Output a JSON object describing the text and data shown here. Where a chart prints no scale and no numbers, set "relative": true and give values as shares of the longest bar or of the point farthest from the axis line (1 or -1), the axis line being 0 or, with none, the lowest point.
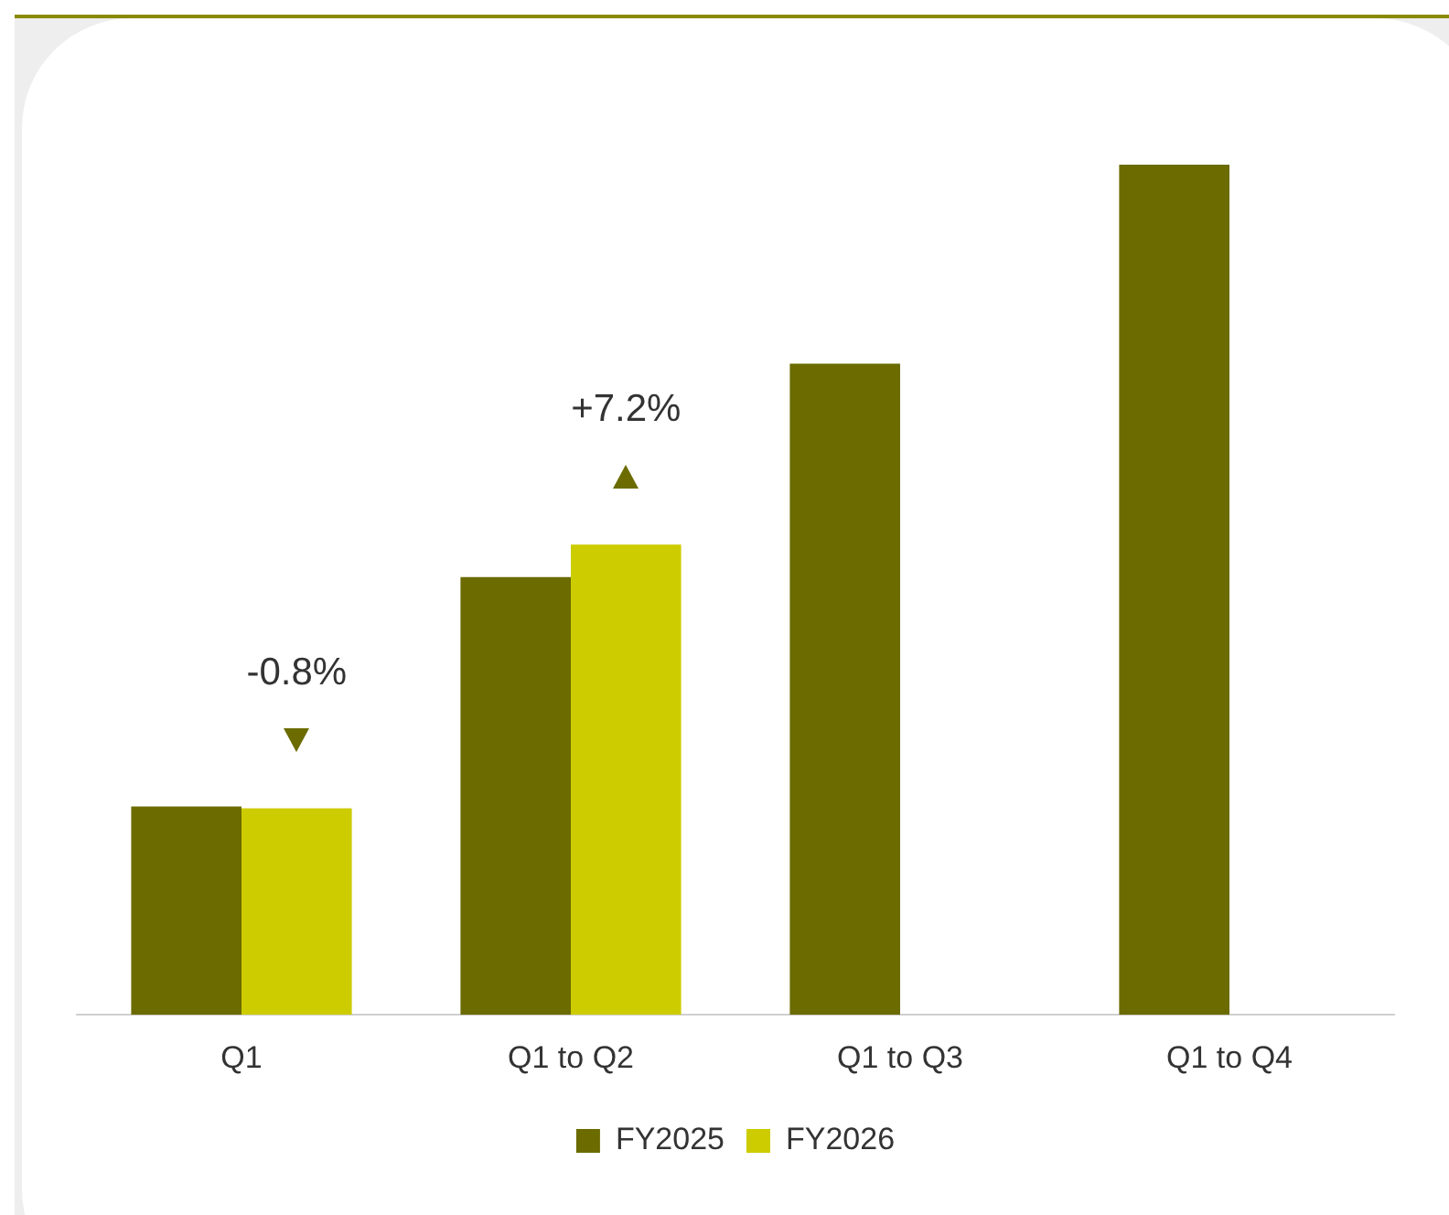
{
  "chart_data": {
    "type": "bar",
    "relative": true,
    "categories": [
      "Q1",
      "Q1 to Q2",
      "Q1 to Q3",
      "Q1 to Q4"
    ],
    "series": [
      {
        "name": "FY2025",
        "color": "#6b6b00",
        "values": [
          0.245,
          0.515,
          0.766,
          1
        ]
      },
      {
        "name": "FY2026",
        "color": "#cccc00",
        "values": [
          0.243,
          0.553,
          null,
          null
        ]
      }
    ],
    "annotations": [
      "-0.8%",
      "+7.2%"
    ],
    "legend": "bottom",
    "grid": false
  }
}
